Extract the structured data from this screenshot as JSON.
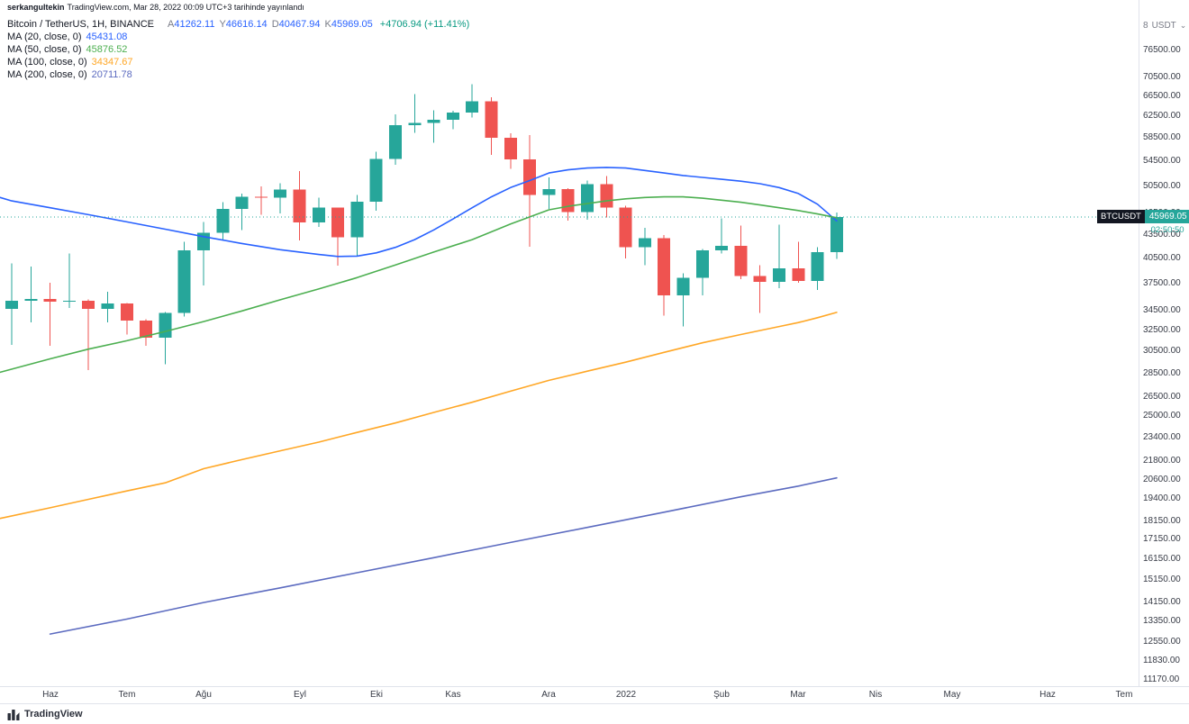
{
  "publish_bar": {
    "username": "serkangultekin",
    "rest": "TradingView.com, Mar 28, 2022 00:09 UTC+3 tarihinde yayınlandı"
  },
  "legend": {
    "symbol_title": "Bitcoin / TetherUS, 1H, BINANCE",
    "ohlc": [
      {
        "label": "A",
        "value": "41262.11"
      },
      {
        "label": "Y",
        "value": "46616.14"
      },
      {
        "label": "D",
        "value": "40467.94"
      },
      {
        "label": "K",
        "value": "45969.05"
      }
    ],
    "change": "+4706.94 (+11.41%)",
    "ma_rows": [
      {
        "label": "MA (20, close, 0)",
        "value": "45431.08"
      },
      {
        "label": "MA (50, close, 0)",
        "value": "45876.52"
      },
      {
        "label": "MA (100, close, 0)",
        "value": "34347.67"
      },
      {
        "label": "MA (200, close, 0)",
        "value": "20711.78"
      }
    ]
  },
  "price_label": {
    "symbol": "BTCUSDT",
    "price": 45969.05,
    "price_text": "45969.05",
    "countdown": "02:50:50"
  },
  "price_axis": {
    "partial_tick": "8",
    "unit": "USDT"
  },
  "footer": {
    "brand": "TradingView"
  },
  "colors": {
    "up": "#26a69a",
    "down": "#ef5350",
    "ohlc_value": "#2962ff",
    "change": "#089981",
    "axis_text": "#363a45",
    "tag_symbol_bg": "#131722"
  },
  "chart_data": {
    "type": "candlestick",
    "title": "Bitcoin / TetherUS, 1H, BINANCE",
    "symbol": "BTCUSDT",
    "exchange": "BINANCE",
    "scale": "log",
    "current_price": 45969.05,
    "current_candle": {
      "open": 41262.11,
      "high": 46616.14,
      "low": 40467.94,
      "close": 45969.05,
      "change_text": "+4706.94 (+11.41%)"
    },
    "candles_columns": [
      "week_start",
      "open",
      "high",
      "low",
      "close"
    ],
    "candles": [
      [
        "2021-05-24",
        34700,
        39900,
        31100,
        35600
      ],
      [
        "2021-05-31",
        35600,
        39500,
        33300,
        35800
      ],
      [
        "2021-06-07",
        35800,
        37600,
        31000,
        35500
      ],
      [
        "2021-06-14",
        35500,
        41100,
        34800,
        35600
      ],
      [
        "2021-06-21",
        35600,
        35750,
        28800,
        34700
      ],
      [
        "2021-06-28",
        34700,
        36600,
        33300,
        35300
      ],
      [
        "2021-07-05",
        35300,
        35350,
        32100,
        33500
      ],
      [
        "2021-07-12",
        33500,
        33650,
        31000,
        31800
      ],
      [
        "2021-07-19",
        31800,
        34400,
        29300,
        34300
      ],
      [
        "2021-07-26",
        34300,
        42600,
        33900,
        41500
      ],
      [
        "2021-08-02",
        41500,
        45300,
        37300,
        43800
      ],
      [
        "2021-08-09",
        43800,
        48100,
        42800,
        47100
      ],
      [
        "2021-08-16",
        47100,
        49400,
        44200,
        48900
      ],
      [
        "2021-08-23",
        48900,
        50500,
        46300,
        48800
      ],
      [
        "2021-08-30",
        48800,
        51000,
        46500,
        50000
      ],
      [
        "2021-09-06",
        50000,
        52900,
        42800,
        45200
      ],
      [
        "2021-09-13",
        45200,
        48800,
        44600,
        47300
      ],
      [
        "2021-09-20",
        47300,
        47350,
        39600,
        43200
      ],
      [
        "2021-09-27",
        43200,
        49200,
        40800,
        48200
      ],
      [
        "2021-10-04",
        48200,
        56100,
        46900,
        54900
      ],
      [
        "2021-10-11",
        54900,
        62900,
        53900,
        60900
      ],
      [
        "2021-10-18",
        60900,
        66900,
        59500,
        61300
      ],
      [
        "2021-10-25",
        61300,
        63700,
        57700,
        61900
      ],
      [
        "2021-11-01",
        61900,
        63600,
        60100,
        63300
      ],
      [
        "2021-11-08",
        63300,
        69000,
        62300,
        65500
      ],
      [
        "2021-11-15",
        65500,
        66300,
        55600,
        58600
      ],
      [
        "2021-11-22",
        58600,
        59400,
        53300,
        54800
      ],
      [
        "2021-11-29",
        54800,
        59100,
        42000,
        49200
      ],
      [
        "2021-12-06",
        49200,
        51900,
        47100,
        50100
      ],
      [
        "2021-12-13",
        50100,
        50200,
        45500,
        46700
      ],
      [
        "2021-12-20",
        46700,
        51400,
        45600,
        50800
      ],
      [
        "2021-12-27",
        50800,
        52100,
        45900,
        47300
      ],
      [
        "2022-01-03",
        47300,
        47600,
        40500,
        41900
      ],
      [
        "2022-01-10",
        41900,
        44500,
        39700,
        43100
      ],
      [
        "2022-01-17",
        43100,
        43500,
        34000,
        36200
      ],
      [
        "2022-01-24",
        36200,
        38700,
        32900,
        38200
      ],
      [
        "2022-01-31",
        38200,
        41700,
        36200,
        41500
      ],
      [
        "2022-02-07",
        41500,
        45800,
        41100,
        42100
      ],
      [
        "2022-02-14",
        42100,
        44800,
        38000,
        38400
      ],
      [
        "2022-02-21",
        38400,
        39700,
        34300,
        37700
      ],
      [
        "2022-02-28",
        37700,
        44900,
        37000,
        39300
      ],
      [
        "2022-03-07",
        39300,
        42600,
        37600,
        37800
      ],
      [
        "2022-03-14",
        37800,
        41900,
        36800,
        41300
      ],
      [
        "2022-03-21",
        41262.11,
        46616.14,
        40467.94,
        45969.05
      ]
    ],
    "ma": [
      {
        "period": 20,
        "value": 45431.08,
        "color": "#2962ff",
        "points": [
          [
            -0.6,
            48800
          ],
          [
            0,
            48300
          ],
          [
            2,
            47300
          ],
          [
            4,
            46300
          ],
          [
            6,
            45300
          ],
          [
            8,
            44300
          ],
          [
            10,
            43300
          ],
          [
            12,
            42400
          ],
          [
            14,
            41600
          ],
          [
            16,
            41000
          ],
          [
            17,
            40750
          ],
          [
            18,
            40800
          ],
          [
            19,
            41200
          ],
          [
            20,
            41900
          ],
          [
            21,
            42900
          ],
          [
            22,
            44200
          ],
          [
            23,
            45700
          ],
          [
            24,
            47300
          ],
          [
            25,
            48900
          ],
          [
            26,
            50300
          ],
          [
            27,
            51400
          ],
          [
            28,
            52600
          ],
          [
            29,
            53100
          ],
          [
            30,
            53400
          ],
          [
            31,
            53500
          ],
          [
            32,
            53400
          ],
          [
            33,
            53000
          ],
          [
            34,
            52600
          ],
          [
            35,
            52200
          ],
          [
            36,
            51900
          ],
          [
            37,
            51600
          ],
          [
            38,
            51300
          ],
          [
            39,
            50900
          ],
          [
            40,
            50300
          ],
          [
            41,
            49400
          ],
          [
            42,
            47800
          ],
          [
            43,
            45431
          ]
        ]
      },
      {
        "period": 50,
        "value": 45876.52,
        "color": "#4caf50",
        "points": [
          [
            -0.6,
            28600
          ],
          [
            2,
            29800
          ],
          [
            4,
            30700
          ],
          [
            6,
            31500
          ],
          [
            8,
            32400
          ],
          [
            10,
            33400
          ],
          [
            12,
            34500
          ],
          [
            14,
            35700
          ],
          [
            16,
            36900
          ],
          [
            18,
            38200
          ],
          [
            20,
            39700
          ],
          [
            22,
            41300
          ],
          [
            24,
            42900
          ],
          [
            26,
            45000
          ],
          [
            28,
            47000
          ],
          [
            29,
            47500
          ],
          [
            30,
            47900
          ],
          [
            31,
            48300
          ],
          [
            32,
            48600
          ],
          [
            33,
            48800
          ],
          [
            34,
            48900
          ],
          [
            35,
            48900
          ],
          [
            36,
            48700
          ],
          [
            37,
            48400
          ],
          [
            38,
            48100
          ],
          [
            39,
            47700
          ],
          [
            40,
            47300
          ],
          [
            41,
            46900
          ],
          [
            42,
            46400
          ],
          [
            43,
            45876
          ]
        ]
      },
      {
        "period": 100,
        "value": 34347.67,
        "color": "#ffa726",
        "points": [
          [
            -0.6,
            18300
          ],
          [
            2,
            18900
          ],
          [
            4,
            19400
          ],
          [
            6,
            19900
          ],
          [
            8,
            20400
          ],
          [
            10,
            21300
          ],
          [
            12,
            21900
          ],
          [
            14,
            22500
          ],
          [
            16,
            23100
          ],
          [
            18,
            23800
          ],
          [
            20,
            24500
          ],
          [
            22,
            25300
          ],
          [
            24,
            26100
          ],
          [
            26,
            27000
          ],
          [
            28,
            27900
          ],
          [
            30,
            28700
          ],
          [
            32,
            29500
          ],
          [
            34,
            30400
          ],
          [
            36,
            31300
          ],
          [
            38,
            32100
          ],
          [
            40,
            32900
          ],
          [
            41,
            33300
          ],
          [
            42,
            33800
          ],
          [
            43,
            34347
          ]
        ]
      },
      {
        "period": 200,
        "value": 20711.78,
        "color": "#5c6bc0",
        "points": [
          [
            2,
            12850
          ],
          [
            6,
            13450
          ],
          [
            10,
            14150
          ],
          [
            14,
            14800
          ],
          [
            18,
            15500
          ],
          [
            22,
            16230
          ],
          [
            26,
            17000
          ],
          [
            30,
            17800
          ],
          [
            34,
            18650
          ],
          [
            38,
            19550
          ],
          [
            41,
            20200
          ],
          [
            43,
            20711
          ]
        ]
      }
    ],
    "price_ticks": [
      76500,
      70500,
      66500,
      62500,
      58500,
      54500,
      50500,
      46500,
      43500,
      40500,
      37500,
      34500,
      32500,
      30500,
      28500,
      26500,
      25000,
      23400,
      21800,
      20600,
      19400,
      18150,
      17150,
      16150,
      15150,
      14150,
      13350,
      12550,
      11830,
      11170
    ],
    "time_labels": [
      {
        "t": "Haz",
        "i": 2
      },
      {
        "t": "Tem",
        "i": 6
      },
      {
        "t": "Ağu",
        "i": 10
      },
      {
        "t": "Eyl",
        "i": 15
      },
      {
        "t": "Eki",
        "i": 19
      },
      {
        "t": "Kas",
        "i": 23
      },
      {
        "t": "Ara",
        "i": 28
      },
      {
        "t": "2022",
        "i": 32
      },
      {
        "t": "Şub",
        "i": 37
      },
      {
        "t": "Mar",
        "i": 41
      },
      {
        "t": "Nis",
        "i": 45
      },
      {
        "t": "May",
        "i": 49
      },
      {
        "t": "Haz",
        "i": 54
      },
      {
        "t": "Tem",
        "i": 58
      }
    ]
  }
}
